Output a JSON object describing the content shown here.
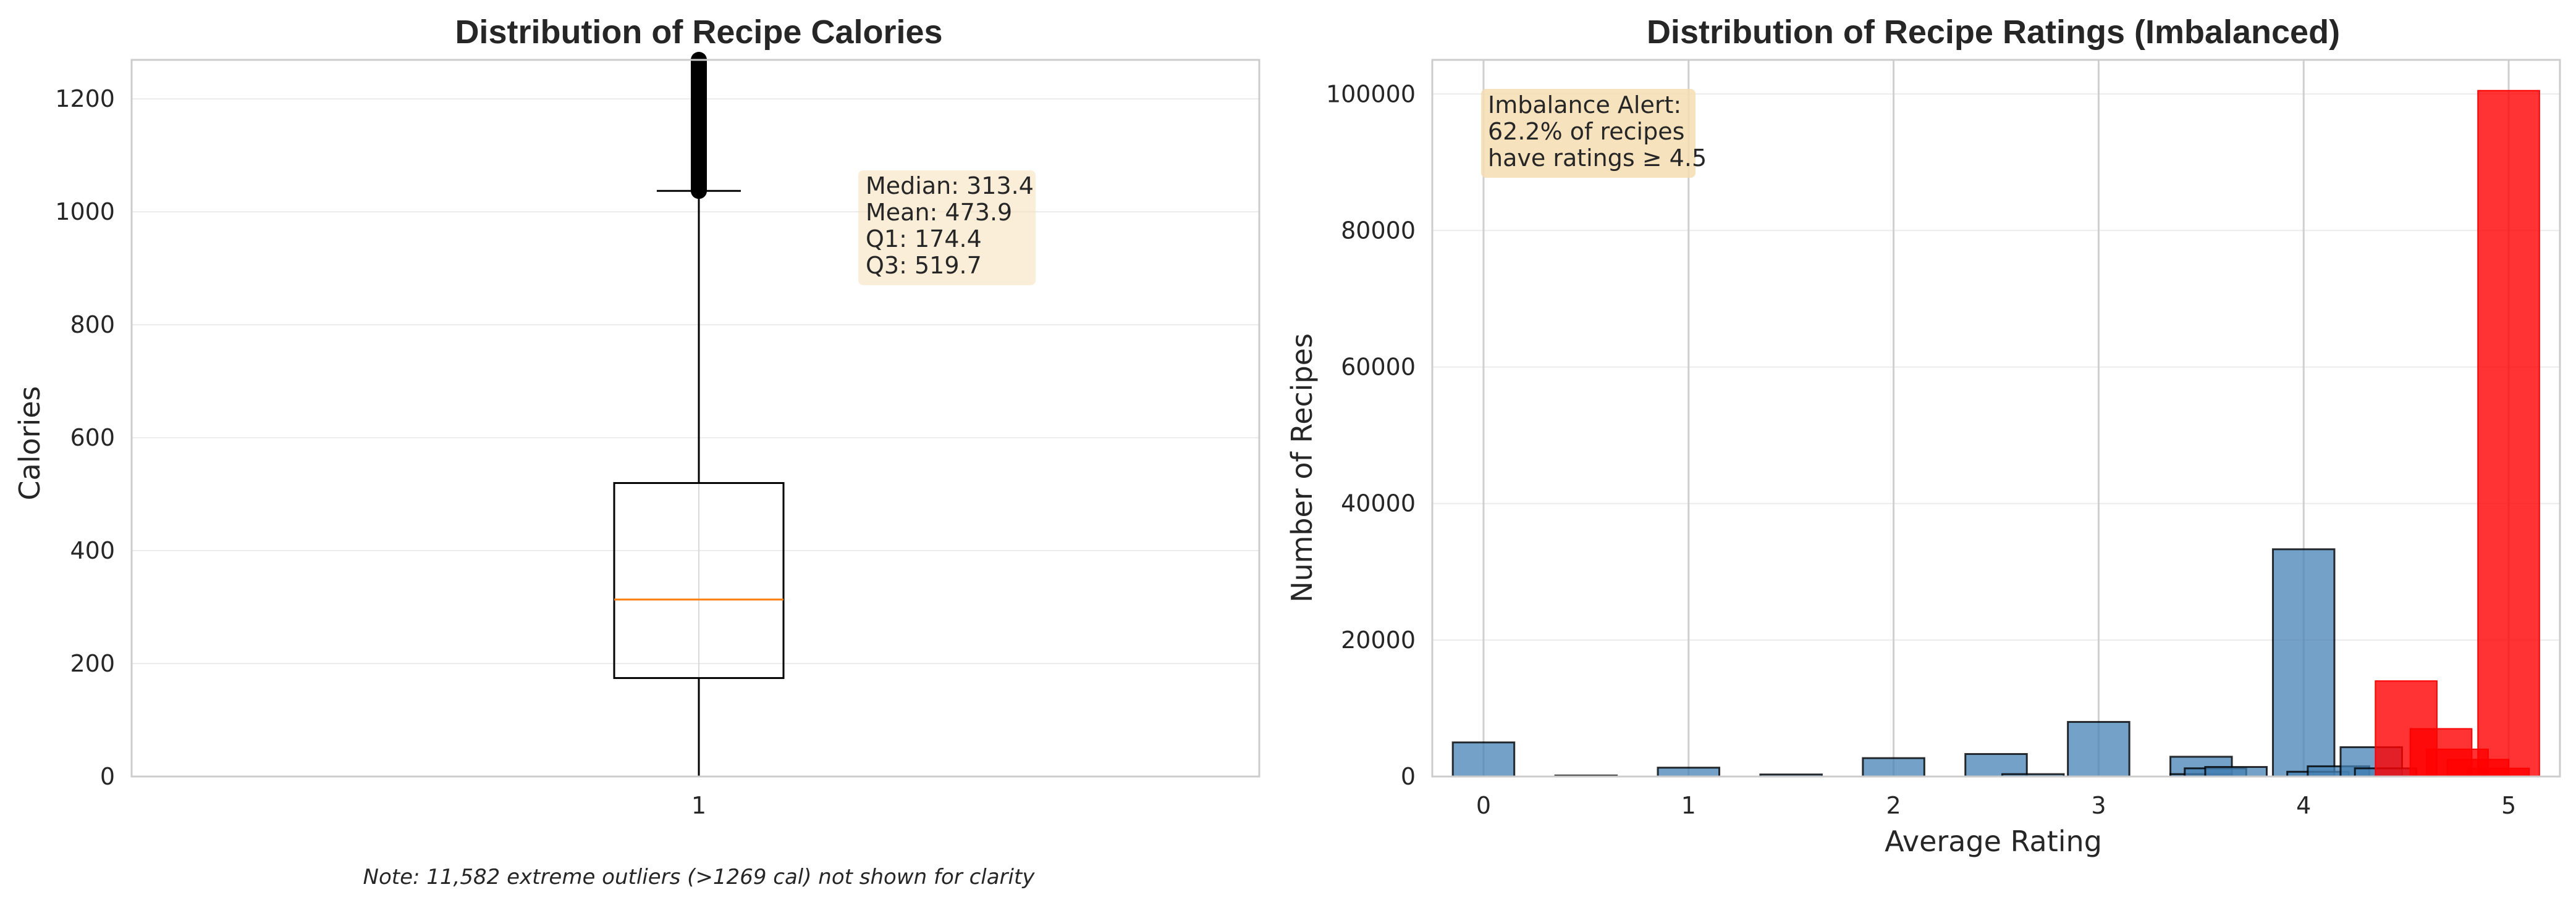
{
  "chart_data": [
    {
      "type": "box",
      "title": "Distribution of Recipe Calories",
      "xlabel": "",
      "ylabel": "Calories",
      "categories": [
        "1"
      ],
      "ylim": [
        0,
        1269
      ],
      "yticks": [
        "0",
        "200",
        "400",
        "600",
        "800",
        "1000",
        "1200"
      ],
      "grid": true,
      "box": {
        "q1": 174.4,
        "median": 313.4,
        "q3": 519.7,
        "whisker_low": 0,
        "whisker_high": 1037,
        "outliers_from": 1037,
        "outliers_to": 1269
      },
      "stats_lines": [
        "Median: 313.4",
        "Mean: 473.9",
        "Q1: 174.4",
        "Q3: 519.7"
      ],
      "note": "Note: 11,582 extreme outliers (>1269 cal) not shown for clarity",
      "colors": {
        "box": "#000000",
        "median": "#ff7f0e",
        "statsbox": "#f5deb3"
      }
    },
    {
      "type": "bar",
      "title": "Distribution of Recipe Ratings (Imbalanced)",
      "xlabel": "Average Rating",
      "ylabel": "Number of Recipes",
      "xlim": [
        -0.25,
        5.25
      ],
      "ylim": [
        0,
        105000
      ],
      "xticks": [
        "0",
        "1",
        "2",
        "3",
        "4",
        "5"
      ],
      "yticks": [
        "0",
        "20000",
        "40000",
        "60000",
        "80000",
        "100000"
      ],
      "grid": true,
      "series": [
        {
          "color": "#4682b4",
          "bars": [
            {
              "x0": -0.15,
              "x1": 0.15,
              "y": 5000
            },
            {
              "x0": 0.35,
              "x1": 0.65,
              "y": 150
            },
            {
              "x0": 0.85,
              "x1": 1.15,
              "y": 1300
            },
            {
              "x0": 1.35,
              "x1": 1.65,
              "y": 300
            },
            {
              "x0": 1.85,
              "x1": 2.15,
              "y": 2700
            },
            {
              "x0": 2.35,
              "x1": 2.65,
              "y": 3300
            },
            {
              "x0": 2.53,
              "x1": 2.83,
              "y": 350
            },
            {
              "x0": 2.85,
              "x1": 3.15,
              "y": 8000
            },
            {
              "x0": 3.35,
              "x1": 3.65,
              "y": 2900
            },
            {
              "x0": 3.35,
              "x1": 3.65,
              "y": 350
            },
            {
              "x0": 3.42,
              "x1": 3.72,
              "y": 1200
            },
            {
              "x0": 3.52,
              "x1": 3.82,
              "y": 1400
            },
            {
              "x0": 3.85,
              "x1": 4.15,
              "y": 33300
            },
            {
              "x0": 3.92,
              "x1": 4.22,
              "y": 700
            },
            {
              "x0": 4.02,
              "x1": 4.32,
              "y": 1500
            },
            {
              "x0": 4.18,
              "x1": 4.48,
              "y": 4300
            },
            {
              "x0": 4.25,
              "x1": 4.55,
              "y": 1200
            }
          ]
        },
        {
          "color": "#ff0000",
          "bars": [
            {
              "x0": 4.35,
              "x1": 4.65,
              "y": 14000
            },
            {
              "x0": 4.52,
              "x1": 4.82,
              "y": 7000
            },
            {
              "x0": 4.6,
              "x1": 4.9,
              "y": 4000
            },
            {
              "x0": 4.7,
              "x1": 5.0,
              "y": 2500
            },
            {
              "x0": 4.8,
              "x1": 5.1,
              "y": 1200
            },
            {
              "x0": 4.85,
              "x1": 5.15,
              "y": 100500
            }
          ]
        }
      ],
      "annotation_lines": [
        "Imbalance Alert:",
        "62.2% of recipes",
        "have ratings ≥ 4.5"
      ],
      "colors": {
        "annotation_box": "#f5deb3"
      }
    }
  ]
}
